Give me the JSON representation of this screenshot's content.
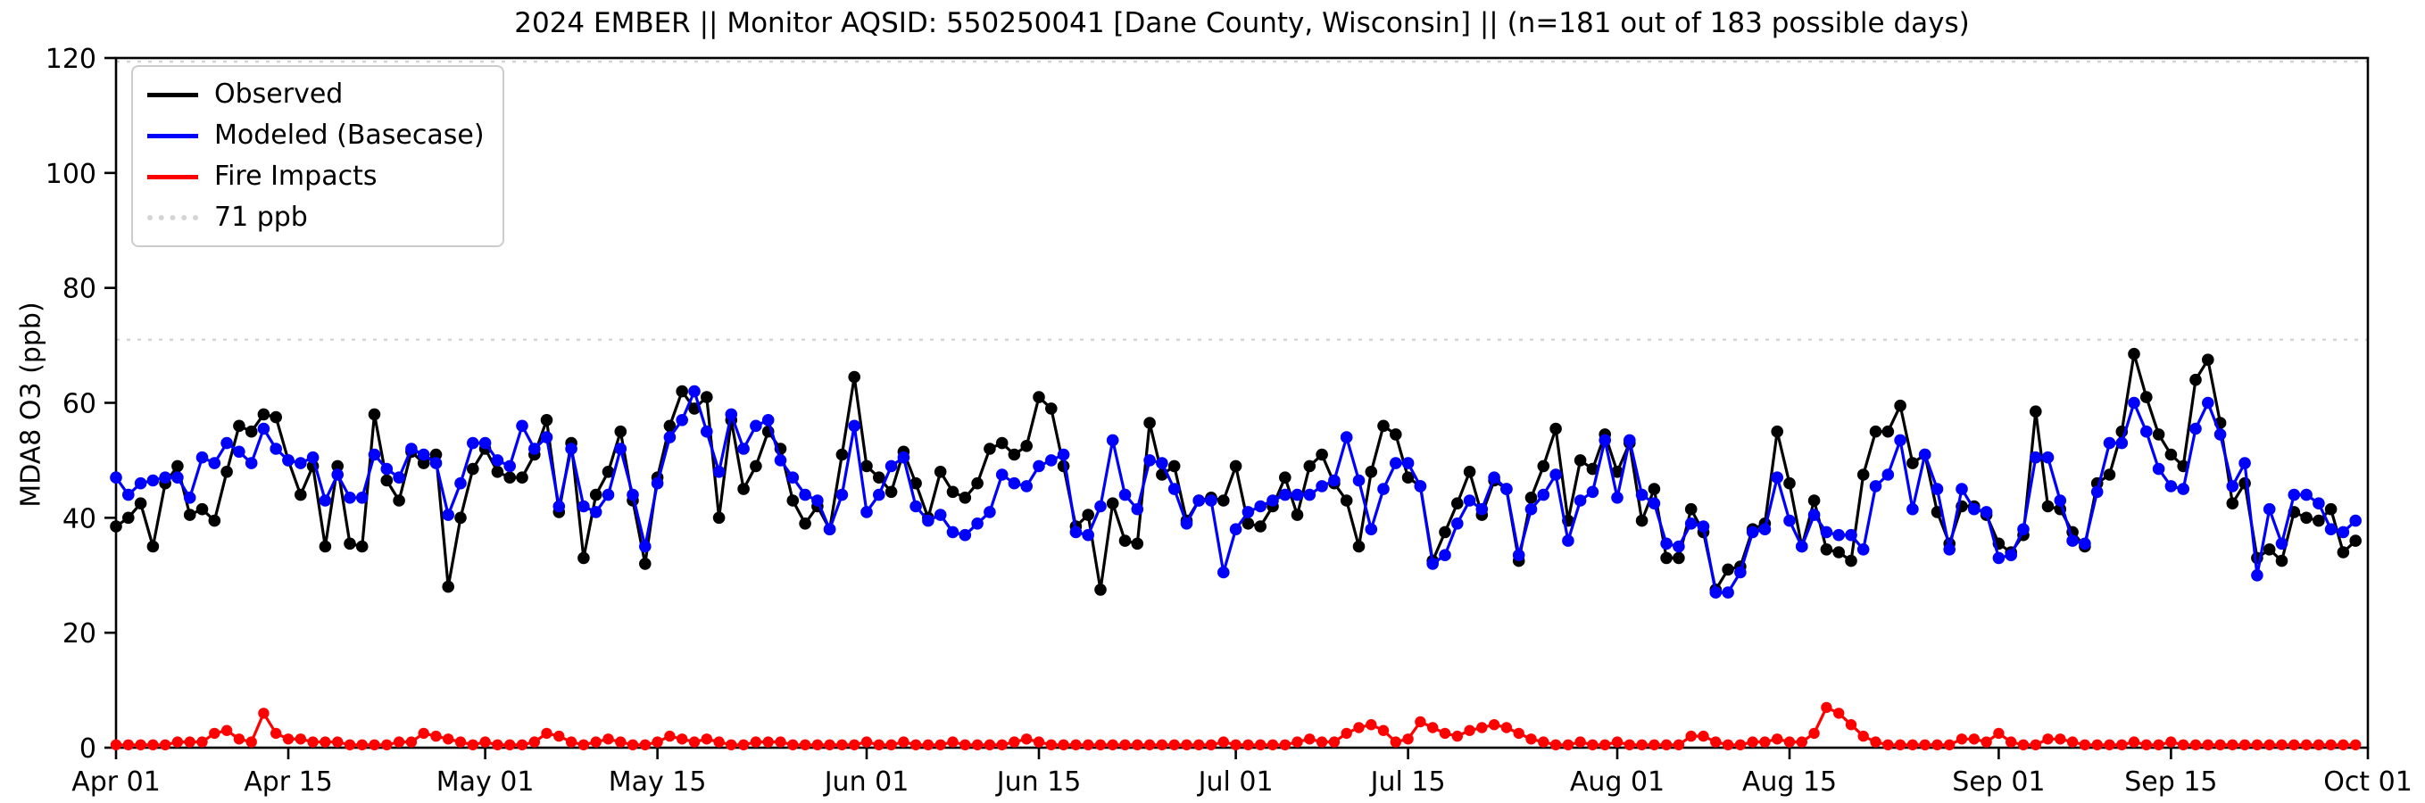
{
  "title": "2024 EMBER || Monitor AQSID: 550250041 [Dane County, Wisconsin] || (n=181 out of 183 possible days)",
  "legend": {
    "items": [
      {
        "label": "Observed",
        "color": "#000000",
        "style": "solid"
      },
      {
        "label": "Modeled (Basecase)",
        "color": "#0000ff",
        "style": "solid"
      },
      {
        "label": "Fire Impacts",
        "color": "#ff0000",
        "style": "solid"
      },
      {
        "label": "71 ppb",
        "color": "#d4d4d4",
        "style": "dotted"
      }
    ]
  },
  "chart_data": {
    "type": "line",
    "title": "2024 EMBER || Monitor AQSID: 550250041 [Dane County, Wisconsin] || (n=181 out of 183 possible days)",
    "xlabel": "",
    "ylabel": "MDA8 O3 (ppb)",
    "ylim": [
      0,
      120
    ],
    "yticks": [
      0,
      20,
      40,
      60,
      80,
      100,
      120
    ],
    "x_start_date": "2024-04-01",
    "x_end_date": "2024-10-01",
    "x_total_days": 183,
    "xticks": [
      {
        "day": 0,
        "label": "Apr 01"
      },
      {
        "day": 14,
        "label": "Apr 15"
      },
      {
        "day": 30,
        "label": "May 01"
      },
      {
        "day": 44,
        "label": "May 15"
      },
      {
        "day": 61,
        "label": "Jun 01"
      },
      {
        "day": 75,
        "label": "Jun 15"
      },
      {
        "day": 91,
        "label": "Jul 01"
      },
      {
        "day": 105,
        "label": "Jul 15"
      },
      {
        "day": 122,
        "label": "Aug 01"
      },
      {
        "day": 136,
        "label": "Aug 15"
      },
      {
        "day": 153,
        "label": "Sep 01"
      },
      {
        "day": 167,
        "label": "Sep 15"
      },
      {
        "day": 183,
        "label": "Oct 01"
      }
    ],
    "threshold": {
      "value": 71,
      "label": "71 ppb",
      "color": "#d4d4d4",
      "style": "dotted"
    },
    "grid": false,
    "legend_position": "upper-left",
    "series": [
      {
        "name": "Observed",
        "color": "#000000",
        "marker": "circle",
        "values": [
          38.5,
          40,
          42.5,
          35,
          46,
          49,
          40.5,
          41.5,
          39.5,
          48,
          56,
          55,
          58,
          57.5,
          50,
          44,
          49,
          35,
          49,
          35.5,
          35,
          58,
          46.5,
          43,
          51.5,
          49.5,
          51,
          28,
          40,
          48.5,
          52,
          48,
          47,
          47,
          51,
          57,
          41,
          53,
          33,
          44,
          48,
          55,
          43,
          32,
          47,
          56,
          62,
          59,
          61,
          40,
          57,
          45,
          49,
          55,
          52,
          43,
          39,
          42,
          38,
          51,
          64.5,
          49,
          47,
          44.5,
          51.5,
          46,
          40,
          48,
          44.5,
          43.5,
          46,
          52,
          53,
          51,
          52.5,
          61,
          59,
          49,
          38.5,
          40.5,
          27.5,
          42.5,
          36,
          35.5,
          56.5,
          47.5,
          49,
          39.5,
          43,
          43.5,
          43,
          49,
          39,
          38.5,
          42,
          47,
          40.5,
          49,
          51,
          46,
          43,
          35,
          48,
          56,
          54.5,
          47,
          45.5,
          32.5,
          37.5,
          42.5,
          48,
          40.5,
          46.5,
          45,
          32.5,
          43.5,
          49,
          55.5,
          39.5,
          50,
          48.5,
          54.5,
          48,
          53,
          39.5,
          45,
          33,
          33,
          41.5,
          37.5,
          27.5,
          31,
          31.5,
          38,
          39,
          55,
          46,
          35,
          43,
          34.5,
          34,
          32.5,
          47.5,
          55,
          55,
          59.5,
          49.5,
          51,
          41,
          35.5,
          42,
          42,
          40.5,
          35.5,
          34,
          37,
          58.5,
          42,
          41.5,
          37.5,
          35,
          46,
          47.5,
          55,
          68.5,
          61,
          54.5,
          51,
          49,
          64,
          67.5,
          56.5,
          42.5,
          46,
          33,
          34.5,
          32.5,
          41,
          40,
          39.5,
          41.5,
          34,
          36
        ]
      },
      {
        "name": "Modeled (Basecase)",
        "color": "#0000ff",
        "marker": "circle",
        "values": [
          47,
          44,
          46,
          46.5,
          47,
          47,
          43.5,
          50.5,
          49.5,
          53,
          51.5,
          49.5,
          55.5,
          52,
          50,
          49.5,
          50.5,
          43,
          47.5,
          43.5,
          43.5,
          51,
          48.5,
          47,
          52,
          51,
          49.5,
          40.5,
          46,
          53,
          53,
          50,
          49,
          56,
          52,
          54,
          42,
          52,
          42,
          41,
          44,
          52,
          44,
          35,
          46,
          54,
          57,
          62,
          55,
          48,
          58,
          52,
          56,
          57,
          50,
          47,
          44,
          43,
          38,
          44,
          56,
          41,
          44,
          49,
          50.5,
          42,
          39.5,
          40.5,
          37.5,
          37,
          39,
          41,
          47.5,
          46,
          45.5,
          49,
          50,
          51,
          37.5,
          37,
          42,
          53.5,
          44,
          41.5,
          50,
          49.5,
          45,
          39,
          43,
          43,
          30.5,
          38,
          41,
          42,
          43,
          44,
          44,
          44,
          45.5,
          46.5,
          54,
          46.5,
          38,
          45,
          49.5,
          49.5,
          45.5,
          32,
          33.5,
          39,
          43,
          41.5,
          47,
          45,
          33.5,
          41.5,
          44,
          47.5,
          36,
          43,
          44.5,
          53.5,
          43.5,
          53.5,
          44,
          42.5,
          35.5,
          35,
          39,
          38.5,
          27,
          27,
          30.5,
          37.5,
          38,
          47,
          39.5,
          35,
          40.5,
          37.5,
          37,
          37,
          34.5,
          45.5,
          47.5,
          53.5,
          41.5,
          51,
          45,
          34.5,
          45,
          41.5,
          41,
          33,
          33.5,
          38,
          50.5,
          50.5,
          43,
          36,
          35.5,
          44.5,
          53,
          53,
          60,
          55,
          48.5,
          45.5,
          45,
          55.5,
          60,
          54.5,
          45.5,
          49.5,
          30,
          41.5,
          35.5,
          44,
          44,
          42.5,
          38,
          37.5,
          39.5
        ]
      },
      {
        "name": "Fire Impacts",
        "color": "#ff0000",
        "marker": "circle",
        "values": [
          0.5,
          0.5,
          0.5,
          0.5,
          0.5,
          1,
          1,
          1,
          2.5,
          3,
          1.5,
          1,
          6,
          2.5,
          1.5,
          1.5,
          1,
          1,
          1,
          0.5,
          0.5,
          0.5,
          0.5,
          1,
          1,
          2.5,
          2,
          1.5,
          1,
          0.5,
          1,
          0.5,
          0.5,
          0.5,
          1,
          2.5,
          2,
          1,
          0.5,
          1,
          1.5,
          1,
          0.5,
          0.5,
          1,
          2,
          1.5,
          1,
          1.5,
          1,
          0.5,
          0.5,
          1,
          1,
          1,
          0.5,
          0.5,
          0.5,
          0.5,
          0.5,
          0.5,
          1,
          0.5,
          0.5,
          1,
          0.5,
          0.5,
          0.5,
          1,
          0.5,
          0.5,
          0.5,
          0.5,
          1,
          1.5,
          1,
          0.5,
          0.5,
          0.5,
          0.5,
          0.5,
          0.5,
          0.5,
          0.5,
          0.5,
          0.5,
          0.5,
          0.5,
          0.5,
          0.5,
          1,
          0.5,
          0.5,
          0.5,
          0.5,
          0.5,
          1,
          1.5,
          1,
          1,
          2.5,
          3.5,
          4,
          3,
          1,
          1.5,
          4.5,
          3.5,
          2.5,
          2,
          3,
          3.5,
          4,
          3.5,
          2.5,
          1.5,
          1,
          0.5,
          0.5,
          1,
          0.5,
          0.5,
          1,
          0.5,
          0.5,
          0.5,
          0.5,
          0.5,
          2,
          2,
          1,
          0.5,
          0.5,
          1,
          1,
          1.5,
          1,
          1,
          2.5,
          7,
          6,
          4,
          2,
          1,
          0.5,
          0.5,
          0.5,
          0.5,
          0.5,
          0.5,
          1.5,
          1.5,
          1,
          2.5,
          1,
          0.5,
          0.5,
          1.5,
          1.5,
          1,
          0.5,
          0.5,
          0.5,
          0.5,
          1,
          0.5,
          0.5,
          1,
          0.5,
          0.5,
          0.5,
          0.5,
          0.5,
          0.5,
          0.5,
          0.5,
          0.5,
          0.5,
          0.5,
          0.5,
          0.5,
          0.5,
          0.5
        ]
      }
    ]
  }
}
